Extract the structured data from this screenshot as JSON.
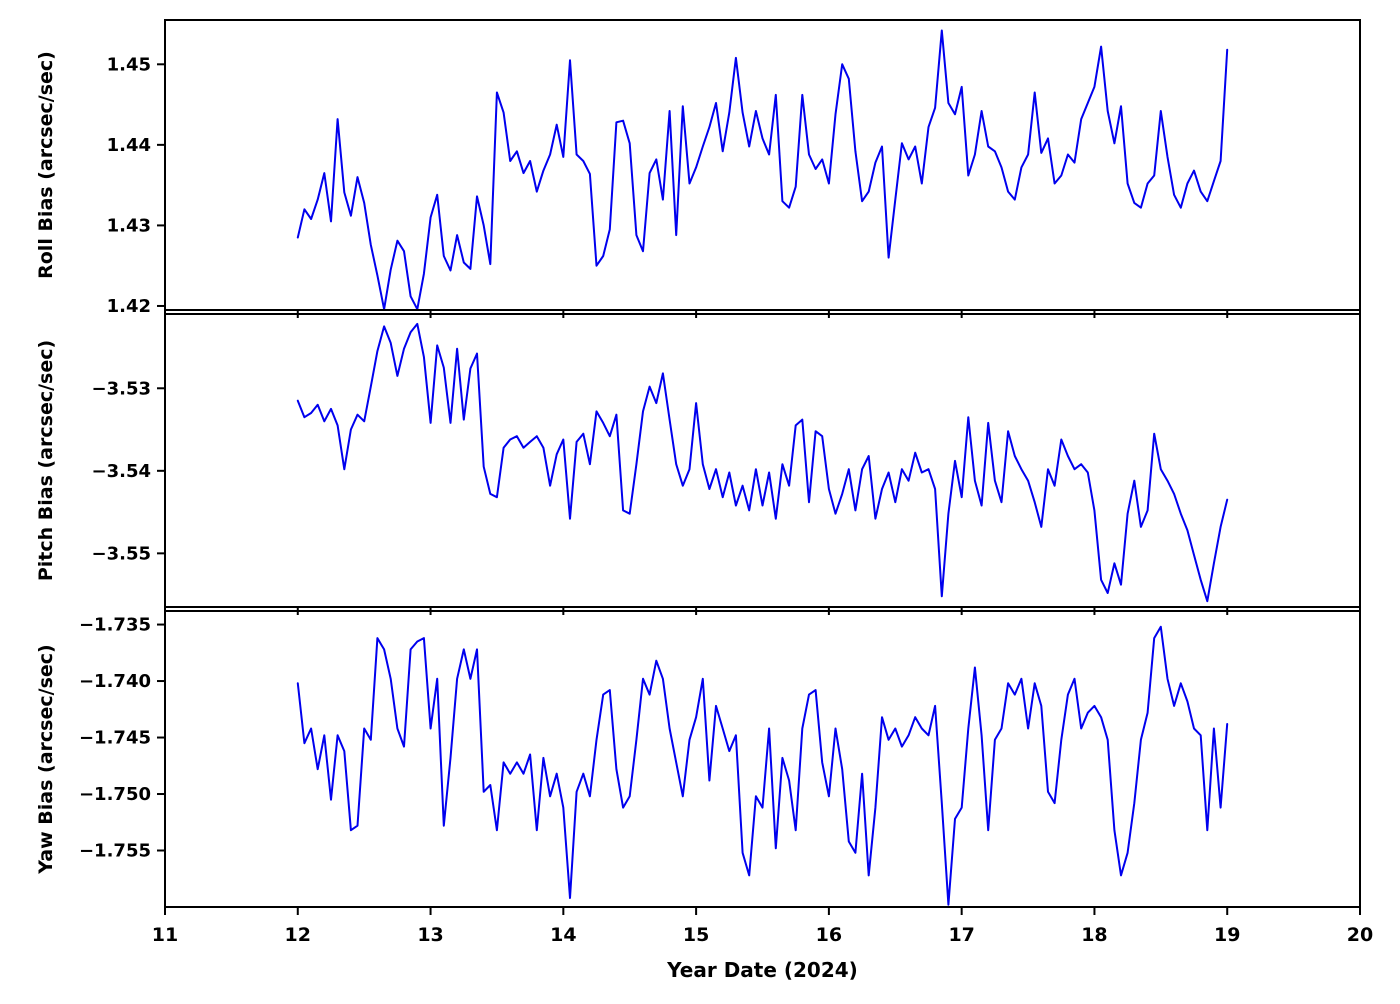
{
  "figure": {
    "xlabel": "Year Date (2024)",
    "xlim": [
      11,
      20
    ],
    "x_ticks": [
      11,
      12,
      13,
      14,
      15,
      16,
      17,
      18,
      19,
      20
    ],
    "x_tick_labels": [
      "11",
      "12",
      "13",
      "14",
      "15",
      "16",
      "17",
      "18",
      "19",
      "20"
    ],
    "line_color": "#0000ee",
    "background": "#ffffff",
    "text_color": "#000000"
  },
  "chart_data": [
    {
      "type": "line",
      "name": "roll-bias",
      "ylabel": "Roll Bias (arcsec/sec)",
      "ylim": [
        1.4195,
        1.4555
      ],
      "yticks": [
        1.42,
        1.43,
        1.44,
        1.45
      ],
      "ytick_labels": [
        "1.42",
        "1.43",
        "1.44",
        "1.45"
      ],
      "x_start": 12.0,
      "x_step": 0.05,
      "values": [
        1.4285,
        1.432,
        1.4308,
        1.4332,
        1.4365,
        1.4305,
        1.4432,
        1.4341,
        1.4312,
        1.436,
        1.4328,
        1.4276,
        1.4238,
        1.4196,
        1.4245,
        1.4281,
        1.4268,
        1.4212,
        1.4196,
        1.424,
        1.431,
        1.4338,
        1.4262,
        1.4244,
        1.4288,
        1.4254,
        1.4246,
        1.4336,
        1.43,
        1.4252,
        1.4465,
        1.444,
        1.438,
        1.4392,
        1.4365,
        1.438,
        1.4342,
        1.4368,
        1.4388,
        1.4425,
        1.4385,
        1.4505,
        1.4388,
        1.438,
        1.4364,
        1.425,
        1.4262,
        1.4295,
        1.4428,
        1.443,
        1.4402,
        1.4288,
        1.4268,
        1.4365,
        1.4382,
        1.4332,
        1.4442,
        1.4288,
        1.4448,
        1.4352,
        1.4372,
        1.4398,
        1.4422,
        1.4452,
        1.4392,
        1.444,
        1.4508,
        1.444,
        1.4398,
        1.4442,
        1.4408,
        1.4388,
        1.4462,
        1.433,
        1.4322,
        1.4348,
        1.4462,
        1.4388,
        1.437,
        1.4382,
        1.4352,
        1.4438,
        1.45,
        1.4482,
        1.4392,
        1.433,
        1.4342,
        1.4378,
        1.4398,
        1.426,
        1.4332,
        1.4402,
        1.4382,
        1.4398,
        1.4352,
        1.4422,
        1.4446,
        1.4542,
        1.4452,
        1.4438,
        1.4472,
        1.4362,
        1.4388,
        1.4442,
        1.4398,
        1.4392,
        1.4372,
        1.4342,
        1.4332,
        1.4372,
        1.4388,
        1.4465,
        1.439,
        1.4408,
        1.4352,
        1.4362,
        1.4388,
        1.4378,
        1.4432,
        1.4452,
        1.4472,
        1.4522,
        1.4442,
        1.4402,
        1.4448,
        1.4352,
        1.4328,
        1.4322,
        1.4352,
        1.4362,
        1.4442,
        1.4385,
        1.4338,
        1.4322,
        1.4352,
        1.4368,
        1.4342,
        1.433,
        1.4355,
        1.438,
        1.4518
      ]
    },
    {
      "type": "line",
      "name": "pitch-bias",
      "ylabel": "Pitch Bias (arcsec/sec)",
      "ylim": [
        -3.5565,
        -3.521
      ],
      "yticks": [
        -3.53,
        -3.54,
        -3.55
      ],
      "ytick_labels": [
        "−3.53",
        "−3.54",
        "−3.55"
      ],
      "x_start": 12.0,
      "x_step": 0.05,
      "values": [
        -3.5315,
        -3.5335,
        -3.533,
        -3.532,
        -3.534,
        -3.5325,
        -3.5345,
        -3.5398,
        -3.535,
        -3.5332,
        -3.534,
        -3.5298,
        -3.5255,
        -3.5225,
        -3.5245,
        -3.5285,
        -3.5252,
        -3.5232,
        -3.5222,
        -3.5262,
        -3.5342,
        -3.5248,
        -3.5275,
        -3.5342,
        -3.5252,
        -3.5338,
        -3.5276,
        -3.5258,
        -3.5395,
        -3.5428,
        -3.5432,
        -3.5372,
        -3.5362,
        -3.5358,
        -3.5372,
        -3.5365,
        -3.5358,
        -3.5372,
        -3.5418,
        -3.538,
        -3.5362,
        -3.5458,
        -3.5365,
        -3.5355,
        -3.5392,
        -3.5328,
        -3.5342,
        -3.5358,
        -3.5332,
        -3.5448,
        -3.5452,
        -3.5392,
        -3.5328,
        -3.5298,
        -3.5318,
        -3.5282,
        -3.5338,
        -3.5392,
        -3.5418,
        -3.5398,
        -3.5318,
        -3.5392,
        -3.5422,
        -3.5398,
        -3.5432,
        -3.5402,
        -3.5442,
        -3.5418,
        -3.5448,
        -3.5398,
        -3.5442,
        -3.5402,
        -3.5458,
        -3.5392,
        -3.5418,
        -3.5345,
        -3.5338,
        -3.5438,
        -3.5352,
        -3.5358,
        -3.5422,
        -3.5452,
        -3.5428,
        -3.5398,
        -3.5448,
        -3.5398,
        -3.5382,
        -3.5458,
        -3.5422,
        -3.5402,
        -3.5438,
        -3.5398,
        -3.5412,
        -3.5378,
        -3.5402,
        -3.5398,
        -3.5422,
        -3.5552,
        -3.5452,
        -3.5388,
        -3.5432,
        -3.5335,
        -3.5412,
        -3.5442,
        -3.5342,
        -3.5412,
        -3.5438,
        -3.5352,
        -3.5382,
        -3.5398,
        -3.5412,
        -3.5438,
        -3.5468,
        -3.5398,
        -3.5418,
        -3.5362,
        -3.5382,
        -3.5398,
        -3.5392,
        -3.5402,
        -3.5448,
        -3.5532,
        -3.5548,
        -3.5512,
        -3.5538,
        -3.5452,
        -3.5412,
        -3.5468,
        -3.5448,
        -3.5355,
        -3.5398,
        -3.5412,
        -3.5428,
        -3.5452,
        -3.5472,
        -3.5502,
        -3.5532,
        -3.5558,
        -3.5512,
        -3.5468,
        -3.5435
      ]
    },
    {
      "type": "line",
      "name": "yaw-bias",
      "ylabel": "Yaw Bias (arcsec/sec)",
      "ylim": [
        -1.76,
        -1.7338
      ],
      "yticks": [
        -1.735,
        -1.74,
        -1.745,
        -1.75,
        -1.755
      ],
      "ytick_labels": [
        "−1.735",
        "−1.740",
        "−1.745",
        "−1.750",
        "−1.755"
      ],
      "x_start": 12.0,
      "x_step": 0.05,
      "values": [
        -1.7402,
        -1.7455,
        -1.7442,
        -1.7478,
        -1.7448,
        -1.7505,
        -1.7448,
        -1.7462,
        -1.7532,
        -1.7528,
        -1.7442,
        -1.7452,
        -1.7362,
        -1.7372,
        -1.7398,
        -1.7442,
        -1.7458,
        -1.7372,
        -1.7365,
        -1.7362,
        -1.7442,
        -1.7398,
        -1.7528,
        -1.7468,
        -1.7398,
        -1.7372,
        -1.7398,
        -1.7372,
        -1.7498,
        -1.7492,
        -1.7532,
        -1.7472,
        -1.7482,
        -1.7472,
        -1.7482,
        -1.7465,
        -1.7532,
        -1.7468,
        -1.7502,
        -1.7482,
        -1.7512,
        -1.7592,
        -1.7498,
        -1.7482,
        -1.7502,
        -1.7452,
        -1.7412,
        -1.7408,
        -1.7478,
        -1.7512,
        -1.7502,
        -1.7452,
        -1.7398,
        -1.7412,
        -1.7382,
        -1.7398,
        -1.7442,
        -1.7472,
        -1.7502,
        -1.7452,
        -1.7432,
        -1.7398,
        -1.7488,
        -1.7422,
        -1.7442,
        -1.7462,
        -1.7448,
        -1.7552,
        -1.7572,
        -1.7502,
        -1.7512,
        -1.7442,
        -1.7548,
        -1.7468,
        -1.7488,
        -1.7532,
        -1.7442,
        -1.7412,
        -1.7408,
        -1.7472,
        -1.7502,
        -1.7442,
        -1.7478,
        -1.7542,
        -1.7552,
        -1.7482,
        -1.7572,
        -1.7512,
        -1.7432,
        -1.7452,
        -1.7442,
        -1.7458,
        -1.7448,
        -1.7432,
        -1.7442,
        -1.7448,
        -1.7422,
        -1.7508,
        -1.7598,
        -1.7522,
        -1.7512,
        -1.7442,
        -1.7388,
        -1.7448,
        -1.7532,
        -1.7452,
        -1.7442,
        -1.7402,
        -1.7412,
        -1.7398,
        -1.7442,
        -1.7402,
        -1.7422,
        -1.7498,
        -1.7508,
        -1.7452,
        -1.7412,
        -1.7398,
        -1.7442,
        -1.7428,
        -1.7422,
        -1.7432,
        -1.7452,
        -1.7532,
        -1.7572,
        -1.7552,
        -1.7508,
        -1.7452,
        -1.7428,
        -1.7362,
        -1.7352,
        -1.7398,
        -1.7422,
        -1.7402,
        -1.7418,
        -1.7442,
        -1.7448,
        -1.7532,
        -1.7442,
        -1.7512,
        -1.7438
      ]
    }
  ]
}
